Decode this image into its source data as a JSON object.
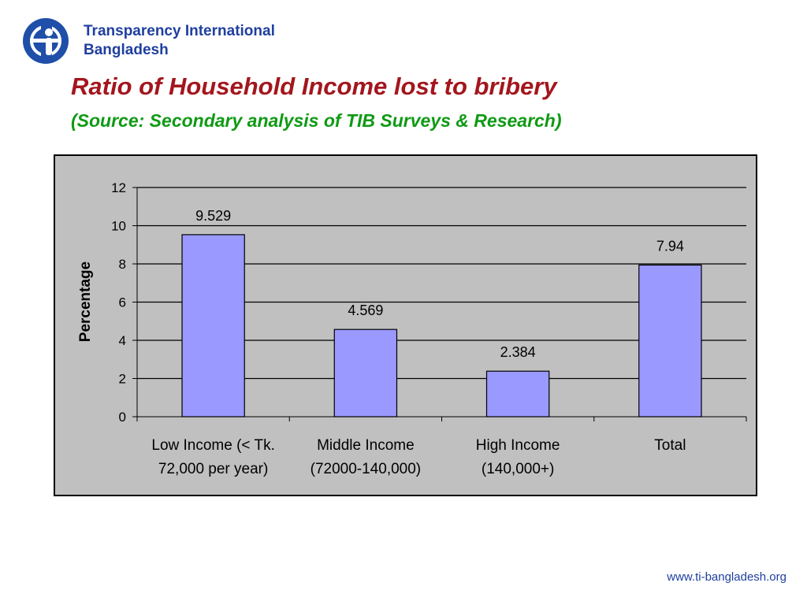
{
  "header": {
    "org_line1": "Transparency International",
    "org_line2": "Bangladesh",
    "title": "Ratio of Household Income lost to bribery",
    "subtitle": "(Source: Secondary analysis of TIB Surveys & Research)"
  },
  "footer": {
    "url": "www.ti-bangladesh.org"
  },
  "colors": {
    "bar": "#9999ff",
    "plot_background": "#c0c0c0",
    "title": "#a3161d",
    "subtitle": "#0f9a14",
    "brand": "#1f3f9f"
  },
  "chart_data": {
    "type": "bar",
    "categories": [
      [
        "Low Income (< Tk.",
        "72,000 per year)"
      ],
      [
        "Middle Income",
        "(72000-140,000)"
      ],
      [
        "High Income",
        "(140,000+)"
      ],
      [
        "Total"
      ]
    ],
    "values": [
      9.529,
      4.569,
      2.384,
      7.94
    ],
    "data_labels": [
      "9.529",
      "4.569",
      "2.384",
      "7.94"
    ],
    "ylabel": "Percentage",
    "ylim": [
      0,
      12
    ],
    "yticks": [
      0,
      2,
      4,
      6,
      8,
      10,
      12
    ],
    "grid": true,
    "legend": "none"
  }
}
